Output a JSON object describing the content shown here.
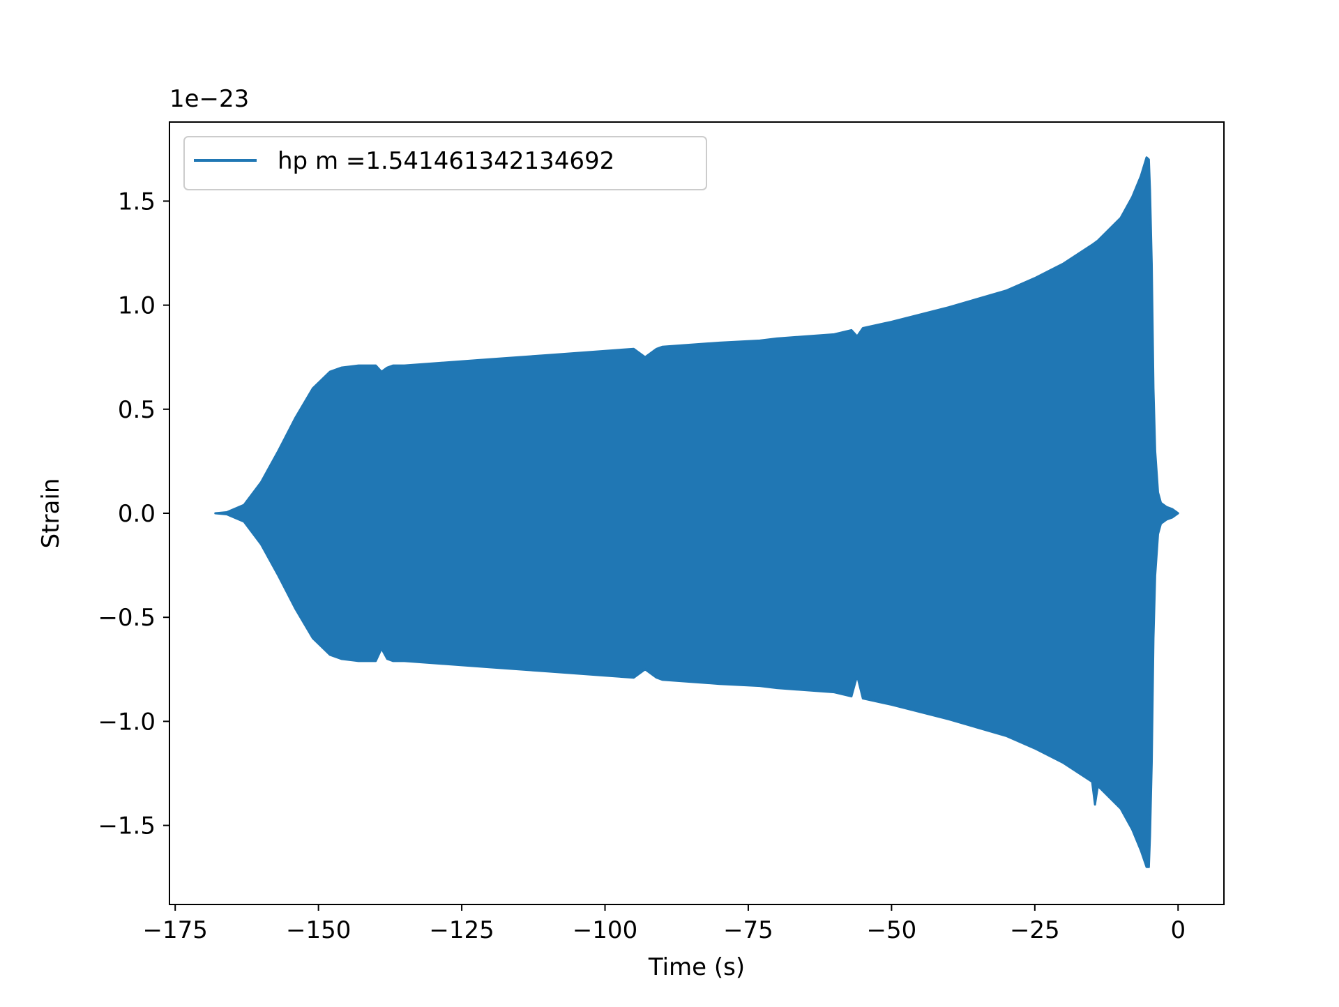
{
  "chart_data": {
    "type": "area",
    "title": "",
    "xlabel": "Time (s)",
    "ylabel": "Strain",
    "offset_label": "1e−23",
    "y_scale_exponent": -23,
    "xlim": [
      -176,
      8
    ],
    "ylim": [
      -1.88,
      1.88
    ],
    "xticks": [
      -175,
      -150,
      -125,
      -100,
      -75,
      -50,
      -25,
      0
    ],
    "xtick_labels": [
      "−175",
      "−150",
      "−125",
      "−100",
      "−75",
      "−50",
      "−25",
      "0"
    ],
    "yticks": [
      -1.5,
      -1.0,
      -0.5,
      0.0,
      0.5,
      1.0,
      1.5
    ],
    "ytick_labels": [
      "−1.5",
      "−1.0",
      "−0.5",
      "0.0",
      "0.5",
      "1.0",
      "1.5"
    ],
    "grid": false,
    "legend": {
      "position": "upper-left",
      "entries": [
        "hp m =1.541461342134692"
      ]
    },
    "series": [
      {
        "name": "hp m =1.541461342134692",
        "color": "#2077b4",
        "x": [
          -168,
          -166,
          -163,
          -160,
          -157,
          -154,
          -151,
          -148,
          -146,
          -143,
          -140,
          -139,
          -138,
          -137,
          -135,
          -130,
          -120,
          -110,
          -100,
          -95,
          -93,
          -92,
          -91,
          -90,
          -80,
          -73,
          -70,
          -60,
          -57,
          -56,
          -55,
          -50,
          -40,
          -30,
          -25,
          -20,
          -15,
          -14.5,
          -14,
          -10,
          -8,
          -6.5,
          -5.5,
          -5.1,
          -4.9,
          -4.6,
          -4.3,
          -4.0,
          -3.5,
          -3,
          -2,
          -1,
          0
        ],
        "upper": [
          0.0,
          0.005,
          0.04,
          0.15,
          0.3,
          0.46,
          0.6,
          0.68,
          0.7,
          0.71,
          0.71,
          0.68,
          0.7,
          0.71,
          0.71,
          0.72,
          0.74,
          0.76,
          0.78,
          0.79,
          0.75,
          0.77,
          0.79,
          0.8,
          0.82,
          0.83,
          0.84,
          0.86,
          0.88,
          0.85,
          0.89,
          0.92,
          0.99,
          1.07,
          1.13,
          1.2,
          1.29,
          1.3,
          1.31,
          1.42,
          1.52,
          1.62,
          1.71,
          1.7,
          1.55,
          1.2,
          0.6,
          0.3,
          0.1,
          0.05,
          0.03,
          0.02,
          0.0
        ],
        "lower": [
          0.0,
          -0.005,
          -0.04,
          -0.15,
          -0.3,
          -0.46,
          -0.6,
          -0.68,
          -0.7,
          -0.71,
          -0.71,
          -0.65,
          -0.7,
          -0.71,
          -0.71,
          -0.72,
          -0.74,
          -0.76,
          -0.78,
          -0.79,
          -0.75,
          -0.77,
          -0.79,
          -0.8,
          -0.82,
          -0.83,
          -0.84,
          -0.86,
          -0.88,
          -0.78,
          -0.89,
          -0.92,
          -0.99,
          -1.07,
          -1.13,
          -1.2,
          -1.29,
          -1.4,
          -1.31,
          -1.42,
          -1.52,
          -1.62,
          -1.7,
          -1.7,
          -1.55,
          -1.2,
          -0.6,
          -0.3,
          -0.1,
          -0.05,
          -0.03,
          -0.02,
          0.0
        ]
      }
    ]
  }
}
